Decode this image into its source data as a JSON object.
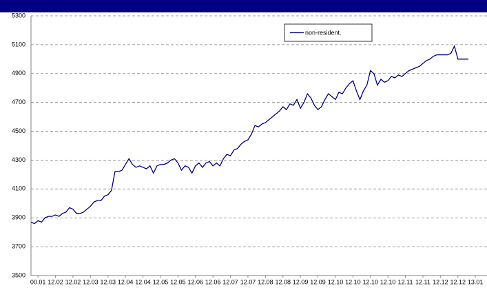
{
  "chart_data": {
    "type": "line",
    "categories": [
      null,
      null,
      "00.01",
      null,
      null,
      null,
      null,
      "12.02",
      null,
      null,
      null,
      null,
      "12.02",
      null,
      null,
      null,
      null,
      "12.03",
      null,
      null,
      null,
      null,
      "12.03",
      null,
      null,
      null,
      null,
      "12.04",
      null,
      null,
      null,
      null,
      "12.04",
      null,
      null,
      null,
      null,
      "12.05",
      null,
      null,
      null,
      null,
      "12.05",
      null,
      null,
      null,
      null,
      "12.06",
      null,
      null,
      null,
      null,
      "12.06",
      null,
      null,
      null,
      null,
      "12.07",
      null,
      null,
      null,
      null,
      "12.07",
      null,
      null,
      null,
      null,
      "12.08",
      null,
      null,
      null,
      null,
      "12.08",
      null,
      null,
      null,
      null,
      "12.09",
      null,
      null,
      null,
      null,
      "12.09",
      null,
      null,
      null,
      null,
      "12.10",
      null,
      null,
      null,
      null,
      "12.10",
      null,
      null,
      null,
      null,
      "12.10",
      null,
      null,
      null,
      null,
      "12.10",
      null,
      null,
      null,
      null,
      "12.11",
      null,
      null,
      null,
      null,
      "12.11",
      null,
      null,
      null,
      null,
      "12.12",
      null,
      null,
      null,
      null,
      "12.12",
      null,
      null,
      null,
      null,
      "13.01"
    ],
    "series": [
      {
        "name": "non-resident.",
        "color": "#000080",
        "values": [
          3870,
          3860,
          3880,
          3870,
          3900,
          3910,
          3910,
          3920,
          3910,
          3930,
          3940,
          3970,
          3960,
          3930,
          3930,
          3940,
          3960,
          3980,
          4010,
          4020,
          4020,
          4050,
          4060,
          4090,
          4220,
          4220,
          4230,
          4270,
          4310,
          4270,
          4250,
          4260,
          4250,
          4240,
          4260,
          4210,
          4260,
          4270,
          4270,
          4280,
          4300,
          4310,
          4280,
          4230,
          4260,
          4250,
          4210,
          4260,
          4280,
          4250,
          4280,
          4290,
          4260,
          4280,
          4260,
          4310,
          4340,
          4330,
          4370,
          4380,
          4410,
          4430,
          4440,
          4480,
          4540,
          4530,
          4550,
          4560,
          4580,
          4600,
          4620,
          4640,
          4670,
          4650,
          4690,
          4680,
          4720,
          4660,
          4700,
          4760,
          4730,
          4680,
          4650,
          4670,
          4720,
          4760,
          4740,
          4720,
          4770,
          4760,
          4800,
          4830,
          4850,
          4780,
          4720,
          4780,
          4820,
          4920,
          4900,
          4820,
          4860,
          4840,
          4850,
          4880,
          4870,
          4890,
          4880,
          4900,
          4920,
          4930,
          4940,
          4950,
          4970,
          4990,
          5000,
          5020,
          5030,
          5030,
          5030,
          5030,
          5040,
          5090,
          5000,
          5000,
          5000,
          5000,
          null,
          null
        ]
      }
    ],
    "ylim": [
      3500,
      5300
    ],
    "yticks": [
      3500,
      3700,
      3900,
      4100,
      4300,
      4500,
      4700,
      4900,
      5100,
      5300
    ],
    "grid": true,
    "legend": "top-right"
  }
}
